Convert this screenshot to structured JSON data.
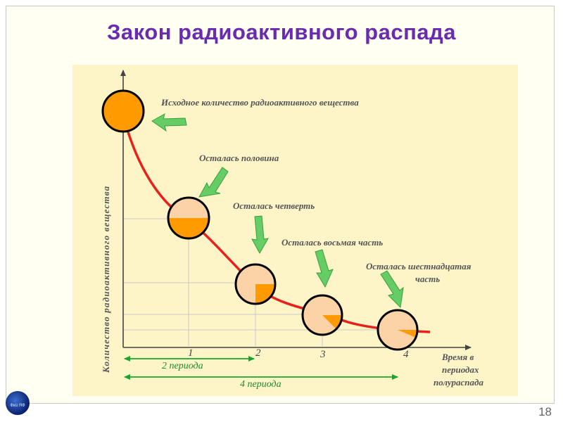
{
  "title": "Закон радиоактивного распада",
  "page_number": "18",
  "logo_text": "Физ ЯФ",
  "diagram": {
    "y_axis_label": "Количество радиоактивного вещества",
    "x_axis_label": [
      "Время в",
      "периодах",
      "полураспада"
    ],
    "ticks": [
      "1",
      "2",
      "3",
      "4"
    ],
    "annotations": {
      "start": "Исходное количество радиоактивного вещества",
      "half": "Осталась половина",
      "quarter": "Осталась четверть",
      "eighth": "Осталась восьмая часть",
      "sixteenth": [
        "Осталась шестнадцатая",
        "часть"
      ]
    },
    "period_labels": [
      "2 периода",
      "4 периода"
    ],
    "points": [
      {
        "t": 0,
        "fraction": 1
      },
      {
        "t": 1,
        "fraction": 0.5
      },
      {
        "t": 2,
        "fraction": 0.25
      },
      {
        "t": 3,
        "fraction": 0.125
      },
      {
        "t": 4,
        "fraction": 0.0625
      }
    ],
    "colors": {
      "curve": "#e8221a",
      "fill": "#ff9a00",
      "circle": "#fcd3a6",
      "arrow": "#66cc66",
      "period": "#1a8a2a"
    }
  }
}
